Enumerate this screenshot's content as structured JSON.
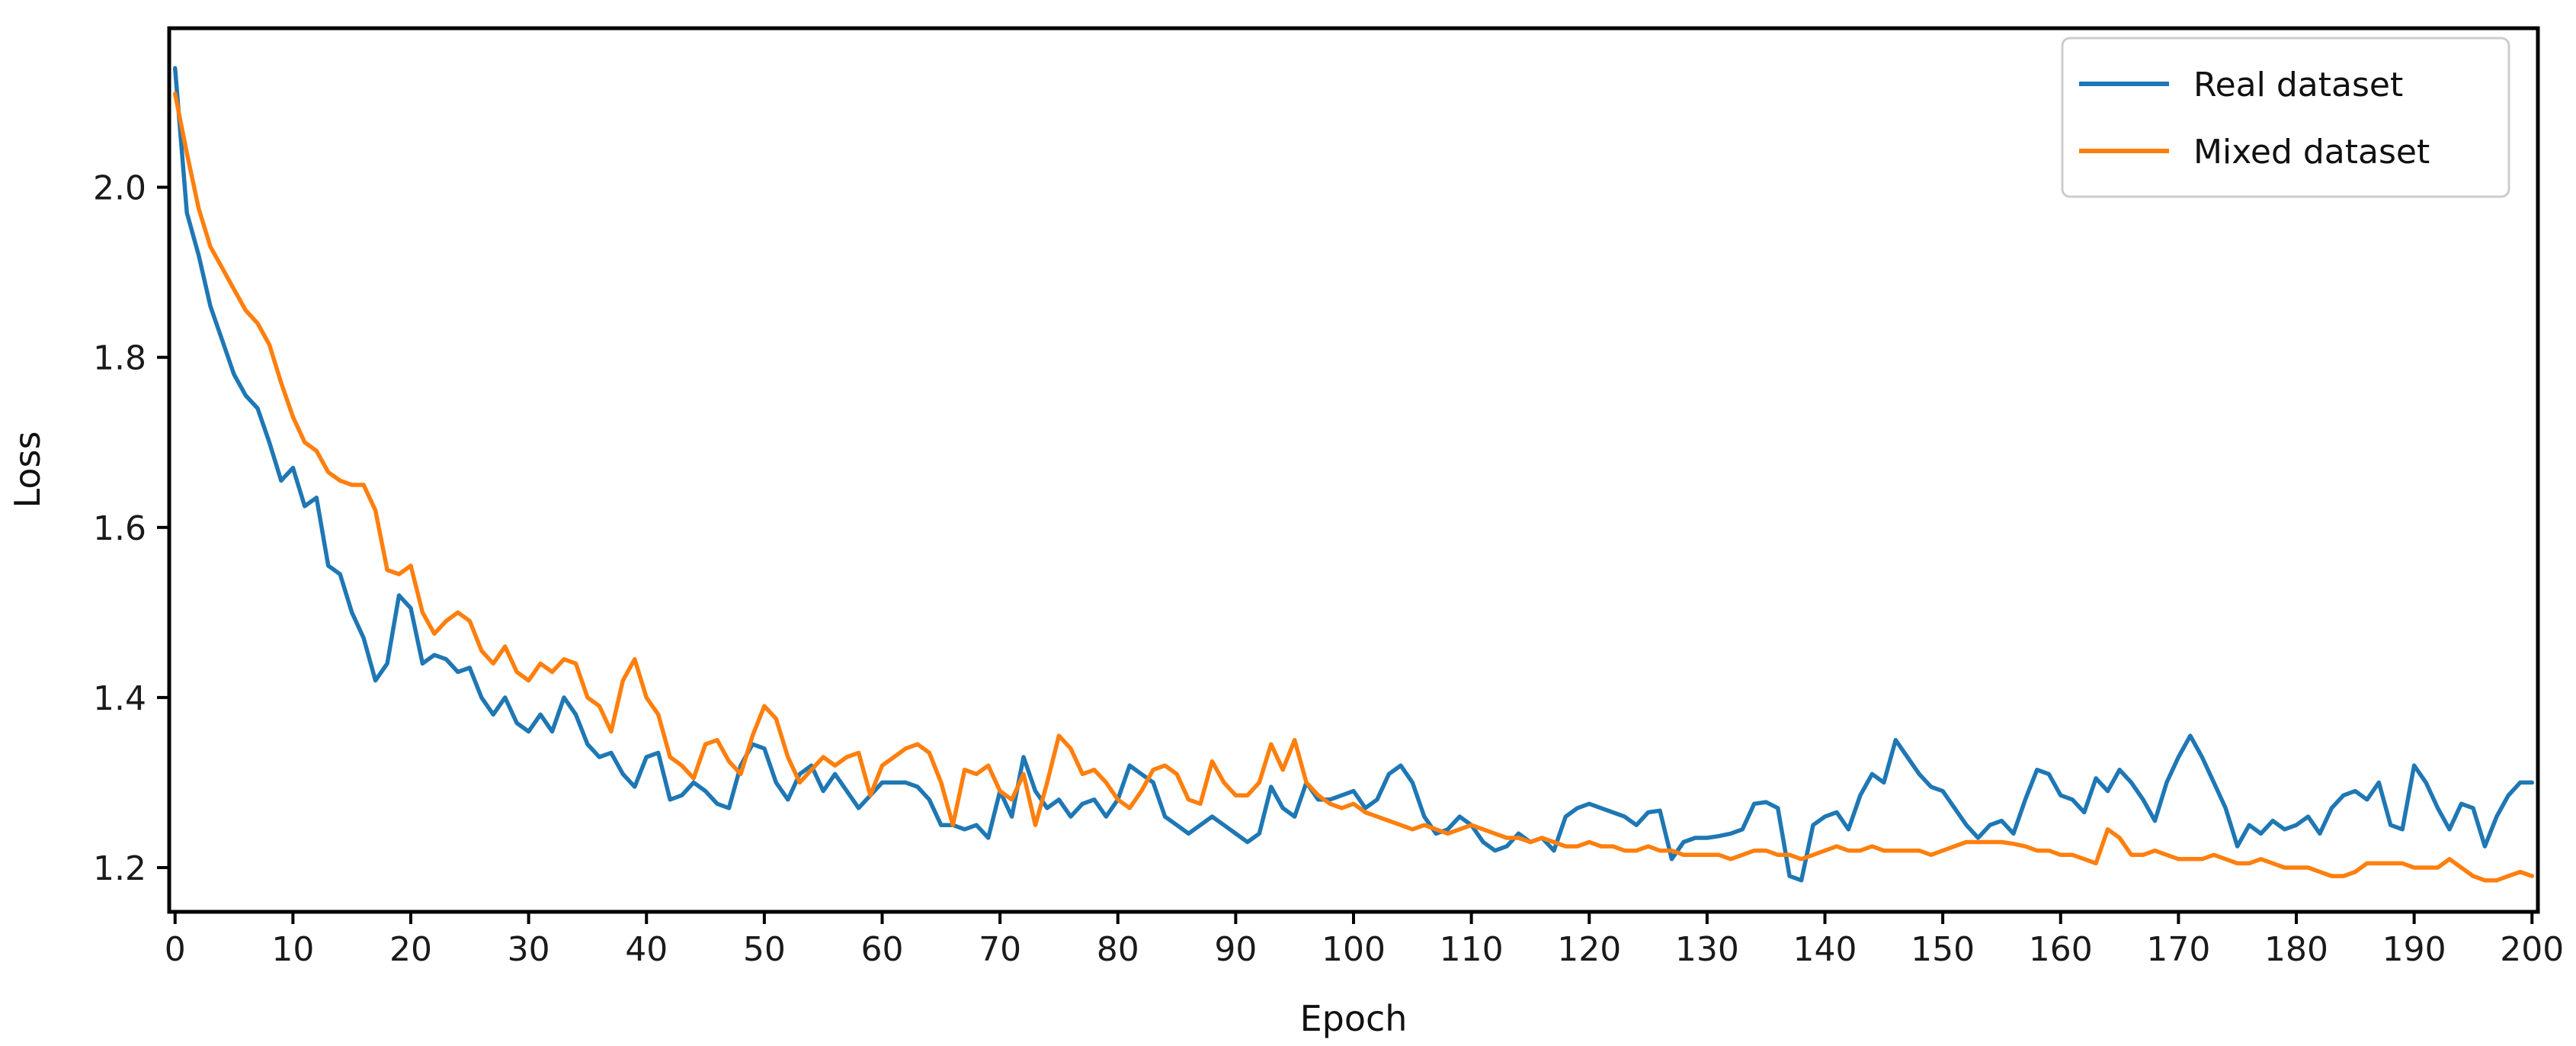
{
  "figure": {
    "background": "#ffffff",
    "axis_color": "#000000",
    "tick_label_color": "#1a1a1a"
  },
  "chart_data": {
    "type": "line",
    "title": "",
    "xlabel": "Epoch",
    "ylabel": "Loss",
    "xlim": [
      -0.5,
      200.5
    ],
    "ylim": [
      1.148,
      2.187
    ],
    "grid": false,
    "x_ticks": [
      0,
      10,
      20,
      30,
      40,
      50,
      60,
      70,
      80,
      90,
      100,
      110,
      120,
      130,
      140,
      150,
      160,
      170,
      180,
      190,
      200
    ],
    "y_ticks": [
      {
        "value": 2.0,
        "label": "2.0"
      },
      {
        "value": 1.8,
        "label": "1.8"
      },
      {
        "value": 1.6,
        "label": "1.6"
      },
      {
        "value": 1.4,
        "label": "1.4"
      },
      {
        "value": 1.2,
        "label": "1.2"
      }
    ],
    "legend": {
      "position": "upper-right",
      "border_color": "#cccccc",
      "background": "#ffffff"
    },
    "x_start": 0,
    "x_step": 1,
    "series": [
      {
        "name": "Real dataset",
        "color": "#1f77b4",
        "values": [
          2.14,
          1.97,
          1.92,
          1.86,
          1.82,
          1.78,
          1.755,
          1.74,
          1.7,
          1.655,
          1.67,
          1.625,
          1.635,
          1.555,
          1.545,
          1.5,
          1.47,
          1.42,
          1.44,
          1.52,
          1.505,
          1.44,
          1.45,
          1.445,
          1.43,
          1.435,
          1.4,
          1.38,
          1.4,
          1.37,
          1.36,
          1.38,
          1.36,
          1.4,
          1.38,
          1.345,
          1.33,
          1.335,
          1.31,
          1.295,
          1.33,
          1.335,
          1.28,
          1.285,
          1.3,
          1.29,
          1.275,
          1.27,
          1.32,
          1.345,
          1.34,
          1.3,
          1.28,
          1.31,
          1.32,
          1.29,
          1.31,
          1.29,
          1.27,
          1.285,
          1.3,
          1.3,
          1.3,
          1.295,
          1.28,
          1.25,
          1.25,
          1.245,
          1.25,
          1.235,
          1.29,
          1.26,
          1.33,
          1.29,
          1.27,
          1.28,
          1.26,
          1.275,
          1.28,
          1.26,
          1.28,
          1.32,
          1.31,
          1.3,
          1.26,
          1.25,
          1.24,
          1.25,
          1.26,
          1.25,
          1.24,
          1.23,
          1.24,
          1.295,
          1.27,
          1.26,
          1.3,
          1.28,
          1.28,
          1.285,
          1.29,
          1.27,
          1.28,
          1.31,
          1.32,
          1.3,
          1.26,
          1.24,
          1.245,
          1.26,
          1.25,
          1.23,
          1.22,
          1.225,
          1.24,
          1.23,
          1.235,
          1.22,
          1.26,
          1.27,
          1.275,
          1.27,
          1.265,
          1.26,
          1.25,
          1.265,
          1.267,
          1.21,
          1.23,
          1.235,
          1.235,
          1.237,
          1.24,
          1.245,
          1.275,
          1.277,
          1.27,
          1.19,
          1.185,
          1.25,
          1.26,
          1.265,
          1.245,
          1.285,
          1.31,
          1.3,
          1.35,
          1.33,
          1.31,
          1.295,
          1.29,
          1.27,
          1.25,
          1.235,
          1.25,
          1.255,
          1.24,
          1.28,
          1.315,
          1.31,
          1.285,
          1.28,
          1.265,
          1.305,
          1.29,
          1.315,
          1.3,
          1.28,
          1.255,
          1.3,
          1.33,
          1.355,
          1.33,
          1.3,
          1.27,
          1.225,
          1.25,
          1.24,
          1.255,
          1.245,
          1.25,
          1.26,
          1.24,
          1.27,
          1.285,
          1.29,
          1.28,
          1.3,
          1.25,
          1.245,
          1.32,
          1.3,
          1.27,
          1.245,
          1.275,
          1.27,
          1.225,
          1.26,
          1.285,
          1.3,
          1.3
        ]
      },
      {
        "name": "Mixed dataset",
        "color": "#ff7f0e",
        "values": [
          2.11,
          2.04,
          1.975,
          1.93,
          1.905,
          1.88,
          1.855,
          1.84,
          1.815,
          1.77,
          1.73,
          1.7,
          1.69,
          1.665,
          1.655,
          1.65,
          1.65,
          1.62,
          1.55,
          1.545,
          1.555,
          1.5,
          1.475,
          1.49,
          1.5,
          1.49,
          1.455,
          1.44,
          1.46,
          1.43,
          1.42,
          1.44,
          1.43,
          1.445,
          1.44,
          1.4,
          1.39,
          1.36,
          1.42,
          1.445,
          1.4,
          1.38,
          1.33,
          1.32,
          1.305,
          1.345,
          1.35,
          1.325,
          1.31,
          1.355,
          1.39,
          1.375,
          1.33,
          1.3,
          1.315,
          1.33,
          1.32,
          1.33,
          1.335,
          1.285,
          1.32,
          1.33,
          1.34,
          1.345,
          1.335,
          1.3,
          1.25,
          1.315,
          1.31,
          1.32,
          1.29,
          1.28,
          1.31,
          1.25,
          1.3,
          1.355,
          1.34,
          1.31,
          1.315,
          1.3,
          1.28,
          1.27,
          1.29,
          1.315,
          1.32,
          1.31,
          1.28,
          1.275,
          1.325,
          1.3,
          1.285,
          1.285,
          1.3,
          1.345,
          1.315,
          1.35,
          1.3,
          1.285,
          1.275,
          1.27,
          1.275,
          1.265,
          1.26,
          1.255,
          1.25,
          1.245,
          1.25,
          1.245,
          1.24,
          1.245,
          1.25,
          1.245,
          1.24,
          1.235,
          1.235,
          1.23,
          1.235,
          1.23,
          1.225,
          1.225,
          1.23,
          1.225,
          1.225,
          1.22,
          1.22,
          1.225,
          1.22,
          1.22,
          1.215,
          1.215,
          1.215,
          1.215,
          1.21,
          1.215,
          1.22,
          1.22,
          1.215,
          1.215,
          1.21,
          1.215,
          1.22,
          1.225,
          1.22,
          1.22,
          1.225,
          1.22,
          1.22,
          1.22,
          1.22,
          1.215,
          1.22,
          1.225,
          1.23,
          1.23,
          1.23,
          1.23,
          1.228,
          1.225,
          1.22,
          1.22,
          1.215,
          1.215,
          1.21,
          1.205,
          1.245,
          1.235,
          1.215,
          1.215,
          1.22,
          1.215,
          1.21,
          1.21,
          1.21,
          1.215,
          1.21,
          1.205,
          1.205,
          1.21,
          1.205,
          1.2,
          1.2,
          1.2,
          1.195,
          1.19,
          1.19,
          1.195,
          1.205,
          1.205,
          1.205,
          1.205,
          1.2,
          1.2,
          1.2,
          1.21,
          1.2,
          1.19,
          1.185,
          1.185,
          1.19,
          1.195,
          1.19
        ]
      }
    ]
  }
}
